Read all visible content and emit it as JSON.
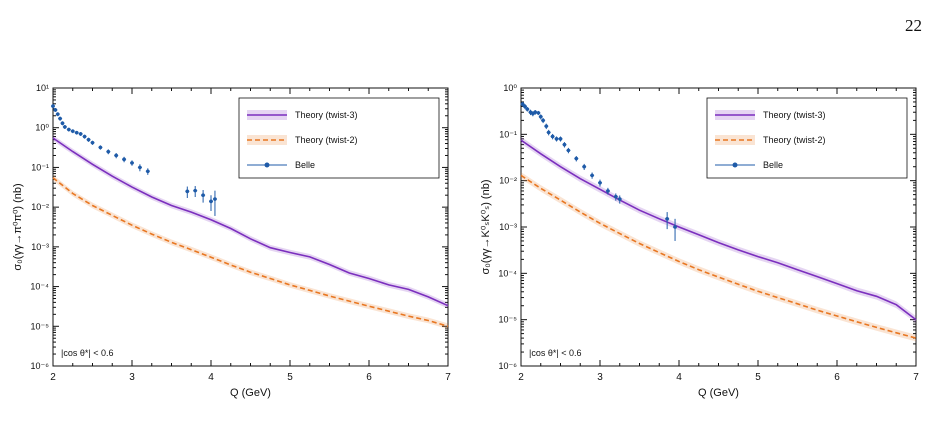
{
  "page": {
    "number": "22"
  },
  "chart_data": [
    {
      "type": "line",
      "xlabel": "Q (GeV)",
      "ylabel": "σ₀(γγ→π⁰π⁰) (nb)",
      "xlim": [
        2,
        7
      ],
      "ylim": [
        1e-06,
        10
      ],
      "yscale": "log",
      "x_ticks": [
        "2",
        "3",
        "4",
        "5",
        "6",
        "7"
      ],
      "y_ticks": [
        "10⁻⁶",
        "10⁻⁵",
        "10⁻⁴",
        "10⁻³",
        "10⁻²",
        "10⁻¹",
        "10⁰",
        "10¹"
      ],
      "annotation": "|cos θ*| < 0.6",
      "legend_position": "top-right",
      "series": [
        {
          "name": "Theory (twist-3)",
          "color": "#7B2FBE",
          "style": "solid",
          "band": true,
          "x": [
            2.0,
            2.25,
            2.5,
            2.75,
            3.0,
            3.25,
            3.5,
            3.75,
            4.0,
            4.25,
            4.5,
            4.75,
            5.0,
            5.25,
            5.5,
            5.75,
            6.0,
            6.25,
            6.5,
            6.75,
            7.0
          ],
          "y": [
            0.55,
            0.25,
            0.12,
            0.06,
            0.032,
            0.018,
            0.011,
            0.0075,
            0.0048,
            0.0029,
            0.0016,
            0.00095,
            0.00072,
            0.00056,
            0.00036,
            0.00022,
            0.00016,
            0.00011,
            8.5e-05,
            5.5e-05,
            3.3e-05
          ]
        },
        {
          "name": "Theory (twist-2)",
          "color": "#E87722",
          "style": "dashed",
          "band": true,
          "x": [
            2.0,
            2.25,
            2.5,
            2.75,
            3.0,
            3.25,
            3.5,
            3.75,
            4.0,
            4.25,
            4.5,
            4.75,
            5.0,
            5.25,
            5.5,
            5.75,
            6.0,
            6.25,
            6.5,
            6.75,
            7.0
          ],
          "y": [
            0.055,
            0.022,
            0.011,
            0.0062,
            0.0035,
            0.0021,
            0.0013,
            0.00085,
            0.00055,
            0.00035,
            0.00023,
            0.00016,
            0.00011,
            8e-05,
            5.8e-05,
            4.3e-05,
            3.2e-05,
            2.4e-05,
            1.8e-05,
            1.4e-05,
            1e-05
          ]
        },
        {
          "name": "Belle",
          "color": "#1F5BA8",
          "style": "points",
          "x": [
            2.0,
            2.03,
            2.06,
            2.09,
            2.12,
            2.15,
            2.2,
            2.25,
            2.3,
            2.35,
            2.4,
            2.45,
            2.5,
            2.6,
            2.7,
            2.8,
            2.9,
            3.0,
            3.1,
            3.2,
            3.7,
            3.8,
            3.9,
            4.0,
            4.05
          ],
          "y": [
            3.5,
            2.8,
            2.2,
            1.7,
            1.3,
            1.05,
            0.9,
            0.82,
            0.75,
            0.7,
            0.6,
            0.5,
            0.42,
            0.32,
            0.25,
            0.2,
            0.16,
            0.13,
            0.1,
            0.08,
            0.025,
            0.026,
            0.02,
            0.014,
            0.016
          ],
          "err": [
            0.4,
            0.3,
            0.25,
            0.2,
            0.15,
            0.12,
            0.1,
            0.09,
            0.08,
            0.08,
            0.07,
            0.06,
            0.05,
            0.04,
            0.035,
            0.03,
            0.025,
            0.02,
            0.02,
            0.015,
            0.008,
            0.008,
            0.007,
            0.006,
            0.01
          ]
        }
      ]
    },
    {
      "type": "line",
      "xlabel": "Q (GeV)",
      "ylabel": "σ₀(γγ→K⁰ₛK⁰ₛ) (nb)",
      "xlim": [
        2,
        7
      ],
      "ylim": [
        1e-06,
        1
      ],
      "yscale": "log",
      "x_ticks": [
        "2",
        "3",
        "4",
        "5",
        "6",
        "7"
      ],
      "y_ticks": [
        "10⁻⁶",
        "10⁻⁵",
        "10⁻⁴",
        "10⁻³",
        "10⁻²",
        "10⁻¹",
        "10⁰"
      ],
      "annotation": "|cos θ*| < 0.6",
      "legend_position": "top-right",
      "series": [
        {
          "name": "Theory (twist-3)",
          "color": "#7B2FBE",
          "style": "solid",
          "band": true,
          "x": [
            2.0,
            2.25,
            2.5,
            2.75,
            3.0,
            3.25,
            3.5,
            3.75,
            4.0,
            4.25,
            4.5,
            4.75,
            5.0,
            5.25,
            5.5,
            5.75,
            6.0,
            6.25,
            6.5,
            6.75,
            7.0
          ],
          "y": [
            0.075,
            0.038,
            0.02,
            0.011,
            0.0065,
            0.0038,
            0.0023,
            0.0015,
            0.001,
            0.00068,
            0.00046,
            0.00032,
            0.00023,
            0.00017,
            0.00012,
            8.5e-05,
            6e-05,
            4.2e-05,
            3.2e-05,
            2.1e-05,
            1e-05
          ]
        },
        {
          "name": "Theory (twist-2)",
          "color": "#E87722",
          "style": "dashed",
          "band": true,
          "x": [
            2.0,
            2.25,
            2.5,
            2.75,
            3.0,
            3.25,
            3.5,
            3.75,
            4.0,
            4.25,
            4.5,
            4.75,
            5.0,
            5.25,
            5.5,
            5.75,
            6.0,
            6.25,
            6.5,
            6.75,
            7.0
          ],
          "y": [
            0.013,
            0.0068,
            0.0038,
            0.0021,
            0.0012,
            0.00072,
            0.00044,
            0.00028,
            0.00018,
            0.00012,
            8.3e-05,
            5.8e-05,
            4.1e-05,
            3e-05,
            2.2e-05,
            1.6e-05,
            1.2e-05,
            9e-06,
            6.8e-06,
            5.2e-06,
            4e-06
          ]
        },
        {
          "name": "Belle",
          "color": "#1F5BA8",
          "style": "points",
          "x": [
            2.02,
            2.05,
            2.08,
            2.12,
            2.15,
            2.18,
            2.22,
            2.25,
            2.28,
            2.32,
            2.35,
            2.4,
            2.45,
            2.5,
            2.55,
            2.6,
            2.7,
            2.8,
            2.9,
            3.0,
            3.1,
            3.2,
            3.25,
            3.85,
            3.95
          ],
          "y": [
            0.45,
            0.4,
            0.35,
            0.3,
            0.28,
            0.3,
            0.29,
            0.24,
            0.2,
            0.15,
            0.11,
            0.09,
            0.08,
            0.08,
            0.06,
            0.045,
            0.03,
            0.02,
            0.013,
            0.009,
            0.006,
            0.0045,
            0.004,
            0.0015,
            0.001
          ],
          "err": [
            0.05,
            0.05,
            0.04,
            0.04,
            0.035,
            0.035,
            0.03,
            0.03,
            0.025,
            0.02,
            0.015,
            0.012,
            0.01,
            0.01,
            0.008,
            0.006,
            0.004,
            0.003,
            0.002,
            0.0015,
            0.001,
            0.0008,
            0.0008,
            0.0006,
            0.0005
          ]
        }
      ]
    }
  ]
}
